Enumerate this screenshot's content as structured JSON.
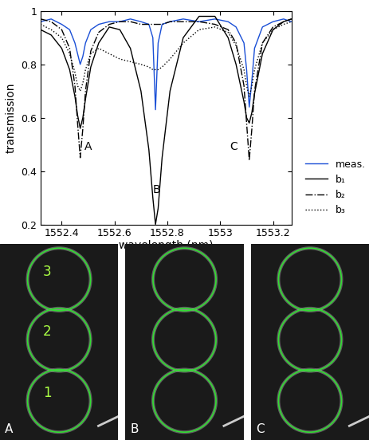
{
  "chart_data": {
    "type": "line",
    "x_label": "wavelength (nm)",
    "y_label": "transmission",
    "x": [
      1552.32,
      1552.36,
      1552.4,
      1552.43,
      1552.45,
      1552.46,
      1552.47,
      1552.48,
      1552.49,
      1552.51,
      1552.54,
      1552.58,
      1552.62,
      1552.66,
      1552.7,
      1552.73,
      1552.745,
      1552.755,
      1552.765,
      1552.78,
      1552.81,
      1552.86,
      1552.92,
      1552.98,
      1553.03,
      1553.06,
      1553.09,
      1553.1,
      1553.11,
      1553.12,
      1553.13,
      1553.16,
      1553.2,
      1553.24,
      1553.27
    ],
    "series": [
      {
        "name": "meas.",
        "color": "#1a4fd6",
        "line_style": "solid",
        "values": [
          0.96,
          0.97,
          0.95,
          0.93,
          0.88,
          0.84,
          0.8,
          0.83,
          0.88,
          0.93,
          0.95,
          0.96,
          0.96,
          0.97,
          0.96,
          0.95,
          0.9,
          0.63,
          0.88,
          0.95,
          0.96,
          0.97,
          0.96,
          0.97,
          0.96,
          0.94,
          0.88,
          0.78,
          0.64,
          0.74,
          0.86,
          0.94,
          0.96,
          0.97,
          0.96
        ]
      },
      {
        "name": "b₁",
        "color": "#000000",
        "line_style": "solid",
        "values": [
          0.93,
          0.91,
          0.86,
          0.78,
          0.68,
          0.61,
          0.56,
          0.6,
          0.67,
          0.79,
          0.88,
          0.94,
          0.93,
          0.86,
          0.7,
          0.48,
          0.3,
          0.2,
          0.26,
          0.45,
          0.7,
          0.9,
          0.98,
          0.98,
          0.9,
          0.8,
          0.66,
          0.6,
          0.58,
          0.62,
          0.69,
          0.84,
          0.93,
          0.96,
          0.97
        ]
      },
      {
        "name": "b₂",
        "color": "#000000",
        "line_style": "dashdot",
        "values": [
          0.97,
          0.96,
          0.93,
          0.86,
          0.72,
          0.58,
          0.45,
          0.56,
          0.7,
          0.85,
          0.92,
          0.95,
          0.96,
          0.96,
          0.95,
          0.95,
          0.95,
          0.95,
          0.95,
          0.95,
          0.96,
          0.96,
          0.96,
          0.95,
          0.93,
          0.88,
          0.72,
          0.58,
          0.44,
          0.56,
          0.7,
          0.88,
          0.94,
          0.96,
          0.97
        ]
      },
      {
        "name": "b₃",
        "color": "#000000",
        "line_style": "dotted",
        "values": [
          0.95,
          0.93,
          0.9,
          0.84,
          0.77,
          0.72,
          0.7,
          0.73,
          0.78,
          0.84,
          0.86,
          0.84,
          0.82,
          0.81,
          0.8,
          0.79,
          0.78,
          0.78,
          0.78,
          0.79,
          0.82,
          0.88,
          0.93,
          0.94,
          0.92,
          0.87,
          0.78,
          0.72,
          0.68,
          0.72,
          0.78,
          0.88,
          0.93,
          0.95,
          0.96
        ]
      }
    ],
    "annotations": [
      {
        "text": "A",
        "x": 1552.5,
        "y": 0.49
      },
      {
        "text": "B",
        "x": 1552.76,
        "y": 0.33
      },
      {
        "text": "C",
        "x": 1553.05,
        "y": 0.49
      }
    ],
    "xlim": [
      1552.32,
      1553.27
    ],
    "xticks": [
      1552.4,
      1552.6,
      1552.8,
      1553,
      1553.2
    ],
    "ylim": [
      0.2,
      1
    ],
    "yticks": [
      0.2,
      0.4,
      0.6,
      0.8,
      1
    ],
    "grid": false,
    "legend": "lower left"
  },
  "panels": {
    "labels": [
      "A",
      "B",
      "C"
    ],
    "ring_labels": [
      "3",
      "2",
      "1"
    ]
  }
}
